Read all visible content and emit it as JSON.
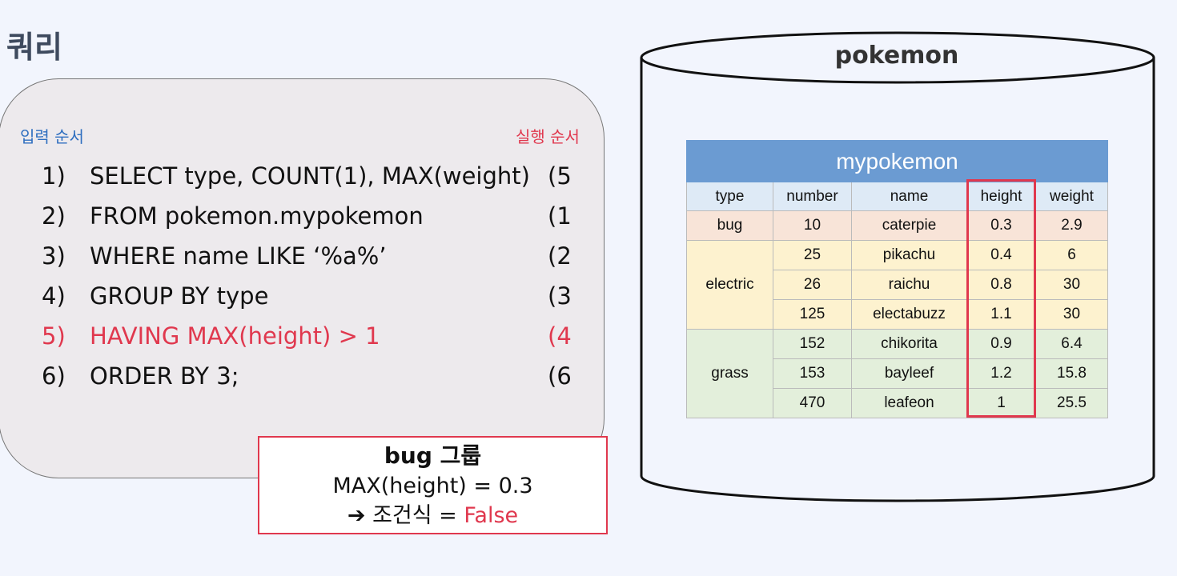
{
  "title": "쿼리",
  "query": {
    "input_order_label": "입력 순서",
    "exec_order_label": "실행 순서",
    "lines": [
      {
        "num": "1)",
        "text": "SELECT type, COUNT(1), MAX(weight)",
        "order": "(5"
      },
      {
        "num": "2)",
        "text": "FROM pokemon.mypokemon",
        "order": "(1"
      },
      {
        "num": "3)",
        "text": "WHERE name LIKE ‘%a%’",
        "order": "(2"
      },
      {
        "num": "4)",
        "text": "GROUP BY type",
        "order": "(3"
      },
      {
        "num": "5)",
        "text": "HAVING MAX(height) > 1",
        "order": "(4"
      },
      {
        "num": "6)",
        "text": "ORDER BY 3;",
        "order": "(6"
      }
    ],
    "highlighted_line": 5
  },
  "callout": {
    "title": "bug 그룹",
    "line1": "MAX(height)  = 0.3",
    "arrow": "➔",
    "line2_prefix": "조건식 = ",
    "line2_value": "False"
  },
  "database": {
    "name": "pokemon",
    "table": {
      "name": "mypokemon",
      "columns": [
        "type",
        "number",
        "name",
        "height",
        "weight"
      ],
      "groups": [
        {
          "type": "bug",
          "rows": [
            [
              "10",
              "caterpie",
              "0.3",
              "2.9"
            ]
          ]
        },
        {
          "type": "electric",
          "rows": [
            [
              "25",
              "pikachu",
              "0.4",
              "6"
            ],
            [
              "26",
              "raichu",
              "0.8",
              "30"
            ],
            [
              "125",
              "electabuzz",
              "1.1",
              "30"
            ]
          ]
        },
        {
          "type": "grass",
          "rows": [
            [
              "152",
              "chikorita",
              "0.9",
              "6.4"
            ],
            [
              "153",
              "bayleef",
              "1.2",
              "15.8"
            ],
            [
              "470",
              "leafeon",
              "1",
              "25.5"
            ]
          ]
        }
      ],
      "highlighted_column": "height"
    }
  },
  "colors": {
    "accent_red": "#e0384e",
    "accent_blue": "#2f6fc0",
    "table_header": "#6b9bd2"
  }
}
